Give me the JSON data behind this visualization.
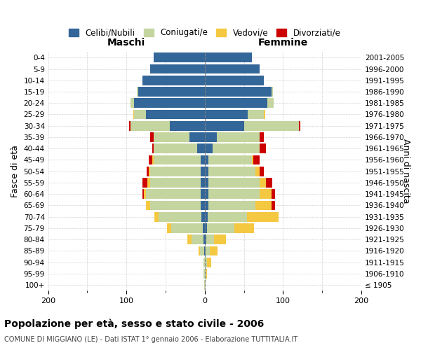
{
  "age_groups": [
    "100+",
    "95-99",
    "90-94",
    "85-89",
    "80-84",
    "75-79",
    "70-74",
    "65-69",
    "60-64",
    "55-59",
    "50-54",
    "45-49",
    "40-44",
    "35-39",
    "30-34",
    "25-29",
    "20-24",
    "15-19",
    "10-14",
    "5-9",
    "0-4"
  ],
  "birth_years": [
    "≤ 1905",
    "1906-1910",
    "1911-1915",
    "1916-1920",
    "1921-1925",
    "1926-1930",
    "1931-1935",
    "1936-1940",
    "1941-1945",
    "1946-1950",
    "1951-1955",
    "1956-1960",
    "1961-1965",
    "1966-1970",
    "1971-1975",
    "1976-1980",
    "1981-1985",
    "1986-1990",
    "1991-1995",
    "1996-2000",
    "2001-2005"
  ],
  "maschi": {
    "celibi": [
      0,
      0,
      0,
      1,
      2,
      3,
      4,
      5,
      5,
      5,
      5,
      5,
      10,
      20,
      45,
      75,
      90,
      85,
      80,
      70,
      65
    ],
    "coniugati": [
      1,
      2,
      2,
      5,
      15,
      40,
      55,
      65,
      70,
      65,
      65,
      60,
      55,
      45,
      50,
      15,
      5,
      2,
      0,
      0,
      0
    ],
    "vedovi": [
      0,
      0,
      0,
      2,
      5,
      5,
      5,
      5,
      3,
      3,
      2,
      2,
      0,
      0,
      0,
      1,
      0,
      0,
      0,
      0,
      0
    ],
    "divorziati": [
      0,
      0,
      0,
      0,
      0,
      0,
      0,
      0,
      2,
      7,
      2,
      5,
      2,
      5,
      2,
      0,
      0,
      0,
      0,
      0,
      0
    ]
  },
  "femmine": {
    "nubili": [
      0,
      0,
      0,
      1,
      2,
      3,
      4,
      5,
      5,
      5,
      5,
      5,
      10,
      15,
      50,
      55,
      80,
      85,
      75,
      70,
      60
    ],
    "coniugate": [
      1,
      2,
      3,
      5,
      10,
      35,
      50,
      60,
      65,
      65,
      60,
      55,
      60,
      55,
      70,
      20,
      8,
      2,
      0,
      0,
      0
    ],
    "vedove": [
      0,
      1,
      5,
      10,
      15,
      25,
      40,
      20,
      15,
      8,
      5,
      2,
      0,
      0,
      0,
      2,
      0,
      0,
      0,
      0,
      0
    ],
    "divorziate": [
      0,
      0,
      0,
      0,
      0,
      0,
      0,
      5,
      5,
      8,
      5,
      8,
      8,
      5,
      2,
      0,
      0,
      0,
      0,
      0,
      0
    ]
  },
  "colors": {
    "celibi_nubili": "#336699",
    "coniugati": "#c5d5a0",
    "vedovi": "#f5c842",
    "divorziati": "#cc0000"
  },
  "xlim": 200,
  "title": "Popolazione per età, sesso e stato civile - 2006",
  "subtitle": "COMUNE DI MIGGIANO (LE) - Dati ISTAT 1° gennaio 2006 - Elaborazione TUTTITALIA.IT",
  "ylabel_left": "Fasce di età",
  "ylabel_right": "Anni di nascita"
}
